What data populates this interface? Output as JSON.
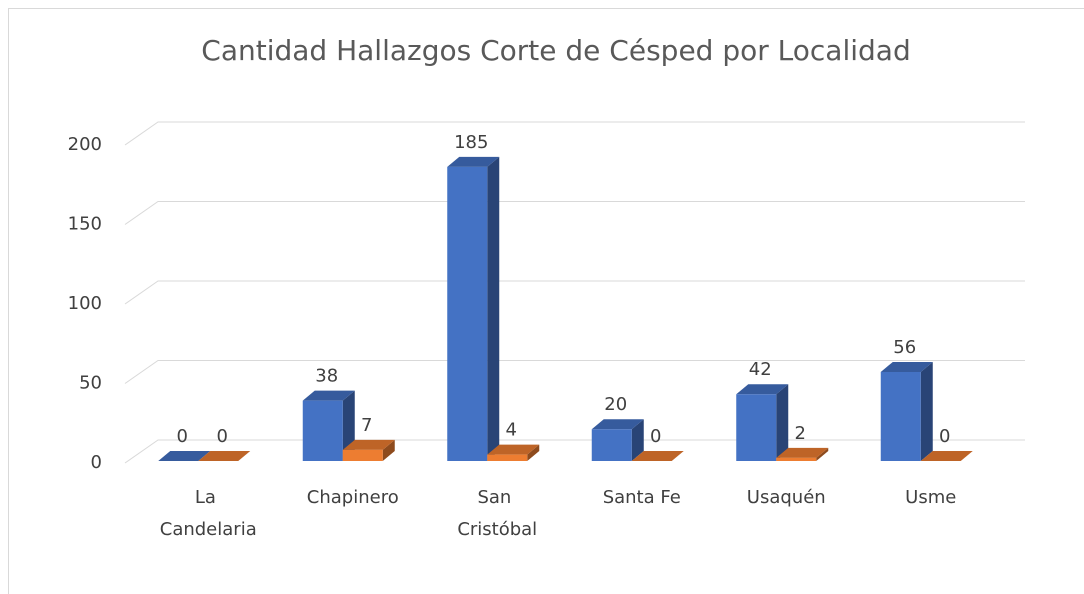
{
  "chart_data": {
    "type": "bar3d",
    "title": "Cantidad Hallazgos Corte de Césped por Localidad",
    "categories": [
      "La Candelaria",
      "Chapinero",
      "San Cristóbal",
      "Santa Fe",
      "Usaquén",
      "Usme"
    ],
    "series": [
      {
        "color": "#4472c4",
        "values": [
          0,
          38,
          185,
          20,
          42,
          56
        ]
      },
      {
        "color": "#ed7d31",
        "values": [
          0,
          7,
          4,
          0,
          2,
          0
        ]
      }
    ],
    "ylim": [
      0,
      200
    ],
    "yticks": [
      0,
      50,
      100,
      150,
      200
    ],
    "grid": true
  }
}
